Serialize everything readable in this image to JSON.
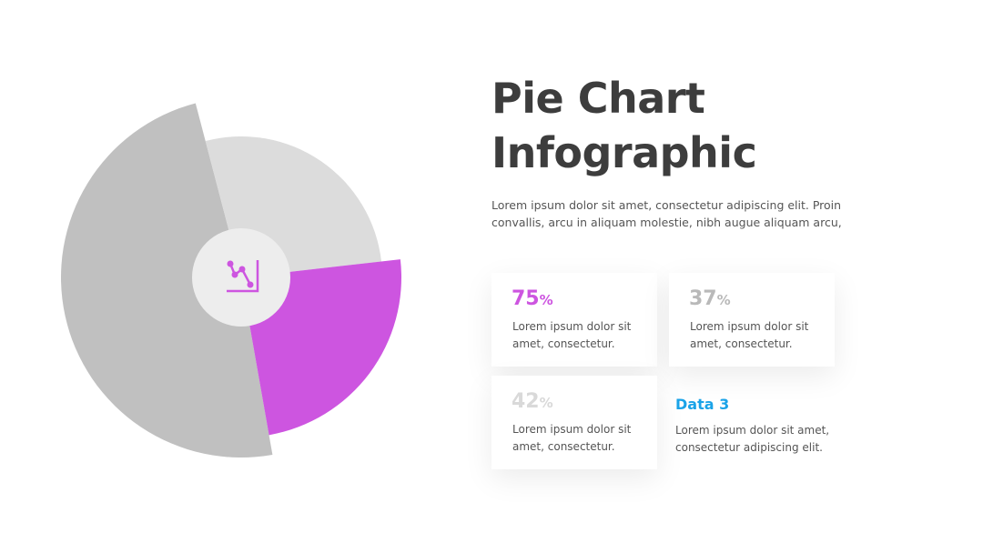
{
  "title": "Pie Chart Infographic",
  "description": "Lorem ipsum dolor sit amet, consectetur adipiscing elit. Proin convallis, arcu in aliquam molestie, nibh augue aliquam arcu,",
  "chart_data": {
    "type": "pie",
    "values": [
      75,
      37,
      42
    ],
    "unit": "%",
    "colors": [
      "#c0c0c0",
      "#cd55e0",
      "#dcdcdc"
    ],
    "label_colors": [
      "#cd55e0",
      "#b9b9b9",
      "#d9d9d9"
    ],
    "descriptions": [
      "Lorem ipsum dolor sit amet, consectetur.",
      "Lorem ipsum dolor sit amet, consectetur.",
      "Lorem ipsum dolor sit amet, consectetur."
    ]
  },
  "data3": {
    "title": "Data 3",
    "text": "Lorem ipsum dolor sit amet, consectetur adipiscing elit."
  }
}
